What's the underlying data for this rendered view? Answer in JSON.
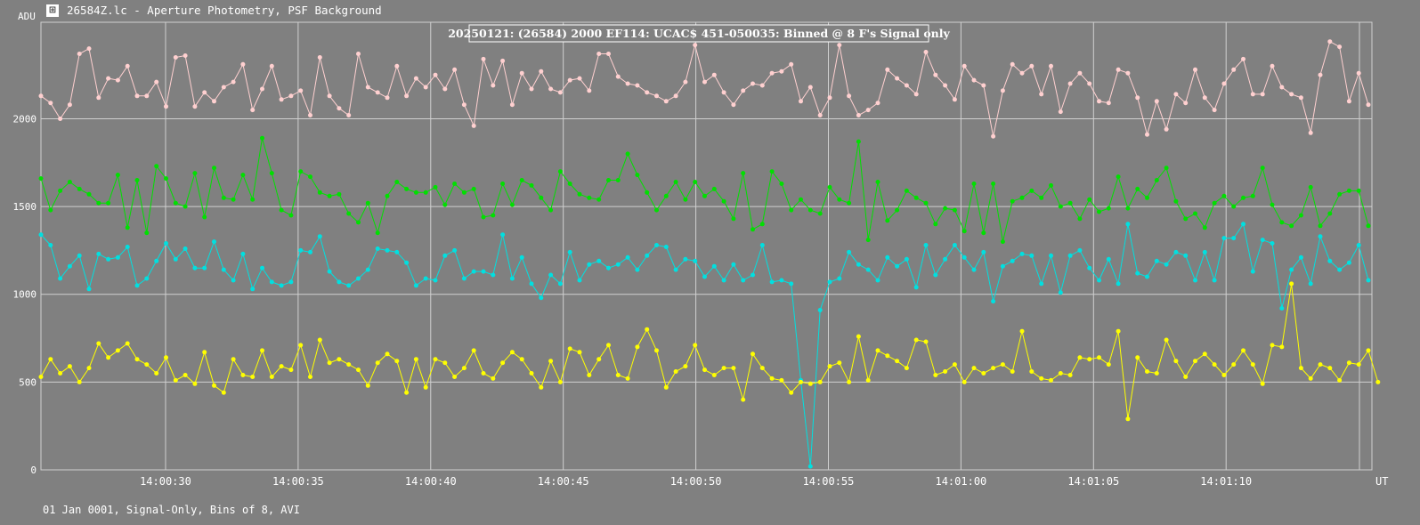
{
  "window": {
    "title": "26584Z.lc - Aperture Photometry, PSF Background",
    "icon": "lightcurve-app-icon"
  },
  "footer": {
    "status": "01 Jan 0001, Signal-Only, Bins of 8, AVI"
  },
  "colors": {
    "background": "#808080",
    "grid": "#d0d0d0",
    "series1": "#ffd0d0",
    "series2": "#00e000",
    "series3": "#00e0e0",
    "series4": "#ffff00"
  },
  "chart_data": {
    "type": "line",
    "title": "20250121: (26584) 2000 EF114: UCAC$ 451-050035: Binned @ 8 F's Signal only",
    "ylabel": "ADU",
    "xlabel": "UT",
    "ylim": [
      0,
      2550
    ],
    "yticks": [
      0,
      500,
      1000,
      1500,
      2000
    ],
    "xlim": [
      "14:00:25.3",
      "14:01:15.5"
    ],
    "xticks": [
      "14:00:30",
      "14:00:35",
      "14:00:40",
      "14:00:45",
      "14:00:50",
      "14:00:55",
      "14:01:00",
      "14:01:05",
      "14:01:10"
    ],
    "grid": true,
    "n_points": 139,
    "series": [
      {
        "color": "#ffd0d0",
        "values": [
          2130,
          2090,
          2000,
          2080,
          2370,
          2400,
          2120,
          2230,
          2220,
          2300,
          2130,
          2130,
          2210,
          2070,
          2350,
          2360,
          2070,
          2150,
          2100,
          2180,
          2210,
          2310,
          2050,
          2170,
          2300,
          2110,
          2130,
          2160,
          2020,
          2350,
          2130,
          2060,
          2020,
          2370,
          2180,
          2150,
          2120,
          2300,
          2130,
          2230,
          2180,
          2250,
          2170,
          2280,
          2080,
          1960,
          2340,
          2190,
          2330,
          2080,
          2260,
          2170,
          2270,
          2170,
          2150,
          2220,
          2230,
          2160,
          2370,
          2370,
          2240,
          2200,
          2190,
          2150,
          2130,
          2100,
          2130,
          2210,
          2420,
          2210,
          2250,
          2150,
          2080,
          2160,
          2200,
          2190,
          2260,
          2270,
          2310,
          2100,
          2180,
          2020,
          2120,
          2420,
          2130,
          2020,
          2050,
          2090,
          2280,
          2230,
          2190,
          2140,
          2380,
          2250,
          2190,
          2110,
          2300,
          2220,
          2190,
          1900,
          2160,
          2310,
          2260,
          2300,
          2140,
          2300,
          2040,
          2200,
          2260,
          2200,
          2100,
          2090,
          2280,
          2260,
          2120,
          1910,
          2100,
          1940,
          2140,
          2090,
          2280,
          2120,
          2050,
          2200,
          2280,
          2340,
          2140,
          2140,
          2300,
          2180,
          2140,
          2120,
          1920,
          2250,
          2440,
          2410,
          2100,
          2260,
          2080
        ]
      },
      {
        "color": "#00e000",
        "values": [
          1660,
          1480,
          1590,
          1640,
          1600,
          1570,
          1520,
          1520,
          1680,
          1380,
          1650,
          1350,
          1730,
          1660,
          1520,
          1500,
          1690,
          1440,
          1720,
          1550,
          1540,
          1680,
          1540,
          1890,
          1690,
          1480,
          1450,
          1700,
          1670,
          1580,
          1560,
          1570,
          1460,
          1410,
          1520,
          1350,
          1560,
          1640,
          1600,
          1580,
          1580,
          1610,
          1510,
          1630,
          1580,
          1600,
          1440,
          1450,
          1630,
          1510,
          1650,
          1620,
          1550,
          1480,
          1700,
          1630,
          1570,
          1550,
          1540,
          1650,
          1650,
          1800,
          1680,
          1580,
          1480,
          1560,
          1640,
          1540,
          1640,
          1560,
          1600,
          1530,
          1430,
          1690,
          1370,
          1400,
          1700,
          1630,
          1480,
          1540,
          1480,
          1460,
          1610,
          1540,
          1520,
          1870,
          1310,
          1640,
          1420,
          1480,
          1590,
          1550,
          1520,
          1400,
          1490,
          1480,
          1360,
          1630,
          1350,
          1630,
          1300,
          1530,
          1550,
          1590,
          1550,
          1620,
          1500,
          1520,
          1430,
          1540,
          1470,
          1490,
          1670,
          1490,
          1600,
          1550,
          1650,
          1720,
          1530,
          1430,
          1460,
          1380,
          1520,
          1560,
          1500,
          1550,
          1560,
          1720,
          1510,
          1410,
          1390,
          1450,
          1610,
          1390,
          1460,
          1570,
          1590,
          1590,
          1390
        ]
      },
      {
        "color": "#00e0e0",
        "values": [
          1340,
          1280,
          1090,
          1160,
          1220,
          1030,
          1230,
          1200,
          1210,
          1270,
          1050,
          1090,
          1190,
          1290,
          1200,
          1260,
          1150,
          1150,
          1300,
          1140,
          1080,
          1230,
          1030,
          1150,
          1070,
          1050,
          1070,
          1250,
          1240,
          1330,
          1130,
          1070,
          1050,
          1090,
          1140,
          1260,
          1250,
          1240,
          1180,
          1050,
          1090,
          1080,
          1220,
          1250,
          1090,
          1130,
          1130,
          1110,
          1340,
          1090,
          1210,
          1060,
          980,
          1110,
          1060,
          1240,
          1080,
          1170,
          1190,
          1150,
          1170,
          1210,
          1140,
          1220,
          1280,
          1270,
          1140,
          1200,
          1190,
          1100,
          1160,
          1080,
          1170,
          1080,
          1110,
          1280,
          1070,
          1080,
          1060,
          510,
          20,
          910,
          1070,
          1090,
          1240,
          1170,
          1140,
          1080,
          1210,
          1160,
          1200,
          1040,
          1280,
          1110,
          1200,
          1280,
          1210,
          1140,
          1240,
          960,
          1160,
          1190,
          1230,
          1220,
          1060,
          1220,
          1010,
          1220,
          1250,
          1150,
          1080,
          1200,
          1060,
          1400,
          1120,
          1100,
          1190,
          1170,
          1240,
          1220,
          1080,
          1240,
          1080,
          1320,
          1320,
          1400,
          1130,
          1310,
          1290,
          920,
          1140,
          1210,
          1060,
          1330,
          1190,
          1140,
          1180,
          1280,
          1080
        ]
      },
      {
        "color": "#ffff00",
        "values": [
          530,
          630,
          550,
          590,
          500,
          580,
          720,
          640,
          680,
          720,
          630,
          600,
          550,
          640,
          510,
          540,
          490,
          670,
          480,
          440,
          630,
          540,
          530,
          680,
          530,
          590,
          570,
          710,
          530,
          740,
          610,
          630,
          600,
          570,
          480,
          610,
          660,
          620,
          440,
          630,
          470,
          630,
          610,
          530,
          580,
          680,
          550,
          520,
          610,
          670,
          630,
          550,
          470,
          620,
          500,
          690,
          670,
          540,
          630,
          710,
          540,
          520,
          700,
          800,
          680,
          470,
          560,
          590,
          710,
          570,
          540,
          580,
          580,
          400,
          660,
          580,
          520,
          510,
          440,
          500,
          490,
          500,
          590,
          610,
          500,
          760,
          510,
          680,
          650,
          620,
          580,
          740,
          730,
          540,
          560,
          600,
          500,
          580,
          550,
          580,
          600,
          560,
          790,
          560,
          520,
          510,
          550,
          540,
          640,
          630,
          640,
          600,
          790,
          290,
          640,
          560,
          550,
          740,
          620,
          530,
          620,
          660,
          600,
          540,
          600,
          680,
          600,
          490,
          710,
          700,
          1060,
          580,
          520,
          600,
          580,
          510,
          610,
          600,
          680,
          500
        ]
      }
    ]
  }
}
